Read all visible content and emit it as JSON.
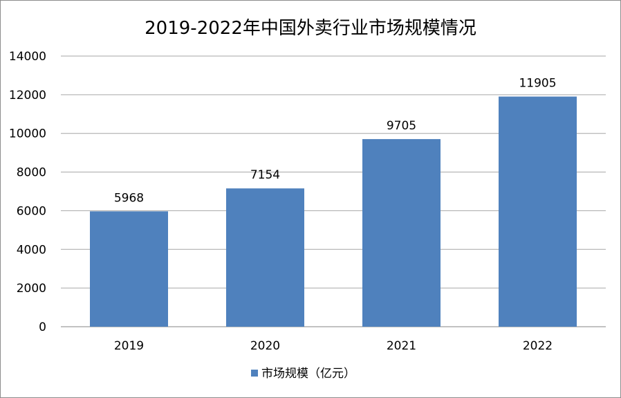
{
  "chart_data": {
    "type": "bar",
    "title": "2019-2022年中国外卖行业市场规模情况",
    "xlabel": "",
    "ylabel": "",
    "categories": [
      "2019",
      "2020",
      "2021",
      "2022"
    ],
    "series": [
      {
        "name": "市场规模（亿元）",
        "values": [
          5968,
          7154,
          9705,
          11905
        ],
        "color": "#4f81bd"
      }
    ],
    "ylim": [
      0,
      14000
    ],
    "yticks": [
      0,
      2000,
      4000,
      6000,
      8000,
      10000,
      12000,
      14000
    ],
    "grid": true,
    "data_labels": true,
    "legend_position": "bottom"
  }
}
